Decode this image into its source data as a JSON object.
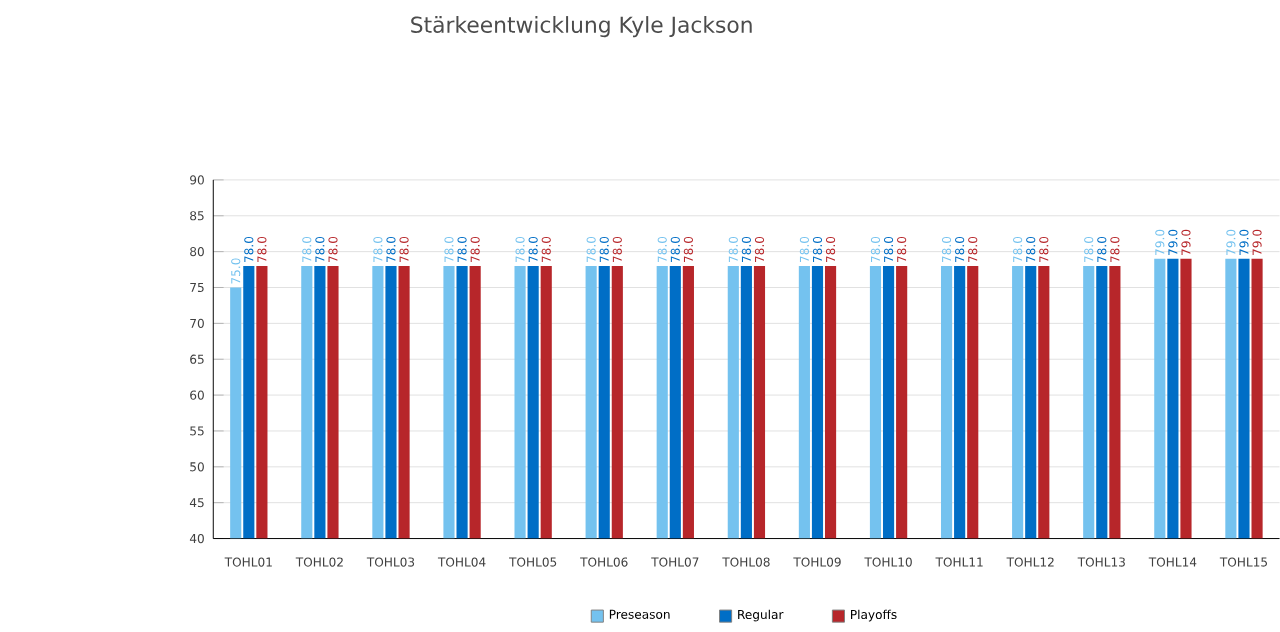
{
  "chart_data": {
    "type": "bar",
    "title": "Stärkeentwicklung Kyle Jackson",
    "categories": [
      "TOHL01",
      "TOHL02",
      "TOHL03",
      "TOHL04",
      "TOHL05",
      "TOHL06",
      "TOHL07",
      "TOHL08",
      "TOHL09",
      "TOHL10",
      "TOHL11",
      "TOHL12",
      "TOHL13",
      "TOHL14",
      "TOHL15"
    ],
    "series": [
      {
        "name": "Preseason",
        "color": "#74c2ef",
        "values": [
          75,
          78,
          78,
          78,
          78,
          78,
          78,
          78,
          78,
          78,
          78,
          78,
          78,
          79,
          79
        ],
        "value_labels": [
          "75.0",
          "78.0",
          "78.0",
          "78.0",
          "78.0",
          "78.0",
          "78.0",
          "78.0",
          "78.0",
          "78.0",
          "78.0",
          "78.0",
          "78.0",
          "79.0",
          "79.0"
        ]
      },
      {
        "name": "Regular",
        "color": "#006ec6",
        "values": [
          78,
          78,
          78,
          78,
          78,
          78,
          78,
          78,
          78,
          78,
          78,
          78,
          78,
          79,
          79
        ],
        "value_labels": [
          "78.0",
          "78.0",
          "78.0",
          "78.0",
          "78.0",
          "78.0",
          "78.0",
          "78.0",
          "78.0",
          "78.0",
          "78.0",
          "78.0",
          "78.0",
          "79.0",
          "79.0"
        ]
      },
      {
        "name": "Playoffs",
        "color": "#b7262a",
        "values": [
          78,
          78,
          78,
          78,
          78,
          78,
          78,
          78,
          78,
          78,
          78,
          78,
          78,
          79,
          79
        ],
        "value_labels": [
          "78.0",
          "78.0",
          "78.0",
          "78.0",
          "78.0",
          "78.0",
          "78.0",
          "78.0",
          "78.0",
          "78.0",
          "78.0",
          "78.0",
          "78.0",
          "79.0",
          "79.0"
        ]
      }
    ],
    "ylim": [
      40,
      90
    ],
    "yticks": [
      40,
      45,
      50,
      55,
      60,
      65,
      70,
      75,
      80,
      85,
      90
    ],
    "grid": "y",
    "legend": "bottom"
  }
}
